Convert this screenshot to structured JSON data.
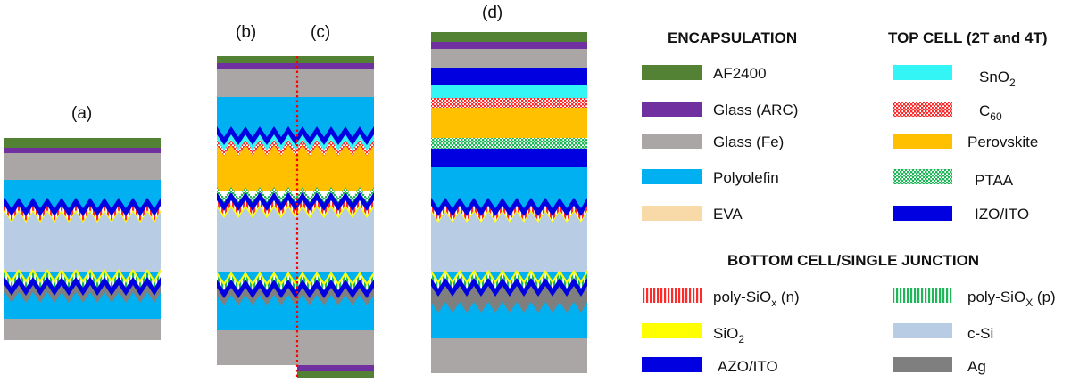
{
  "panels": {
    "a": "(a)",
    "b": "(b)",
    "c": "(c)",
    "d": "(d)"
  },
  "legend": {
    "encapsulation": {
      "title": "ENCAPSULATION",
      "items": [
        {
          "key": "af2400",
          "label": "AF2400",
          "color": "#548235"
        },
        {
          "key": "glass_arc",
          "label": "Glass (ARC)",
          "color": "#7030a0"
        },
        {
          "key": "glass_fe",
          "label": "Glass (Fe)",
          "color": "#aaa6a6"
        },
        {
          "key": "polyolefin",
          "label": "Polyolefin",
          "color": "#00b0f0"
        },
        {
          "key": "eva",
          "label": "EVA",
          "color": "#f8d9a8"
        }
      ]
    },
    "top_cell": {
      "title": "TOP CELL (2T and 4T)",
      "items": [
        {
          "key": "sno2",
          "label_main": "SnO",
          "label_sub": "2",
          "label_after": "",
          "color": "#33f5f5"
        },
        {
          "key": "c60",
          "label_main": "C",
          "label_sub": "60",
          "label_after": "",
          "color": "#ff2a2a",
          "pattern": "dots"
        },
        {
          "key": "perovskite",
          "label": "Perovskite",
          "color": "#ffc000"
        },
        {
          "key": "ptaa",
          "label": "PTAA",
          "color": "#1fb65a",
          "pattern": "dots"
        },
        {
          "key": "izo_ito",
          "label": "IZO/ITO",
          "color": "#0000e0"
        }
      ]
    },
    "bottom_cell": {
      "title": "BOTTOM CELL/SINGLE JUNCTION",
      "items_left": [
        {
          "key": "poly_n",
          "label_main": "poly-SiO",
          "label_sub": "x",
          "label_after": " (n)",
          "color": "#ff2a2a",
          "pattern": "stripes"
        },
        {
          "key": "sio2",
          "label_main": "SiO",
          "label_sub": "2",
          "label_after": "",
          "color": "#ffff00"
        },
        {
          "key": "azo_ito",
          "label": "AZO/ITO",
          "color": "#0000e0"
        }
      ],
      "items_right": [
        {
          "key": "poly_p",
          "label_main": "poly-SiO",
          "label_sub": "X",
          "label_after": " (p)",
          "color": "#1fb65a",
          "pattern": "stripes"
        },
        {
          "key": "csi",
          "label": "c-Si",
          "color": "#b8cce4"
        },
        {
          "key": "ag",
          "label": "Ag",
          "color": "#7f7f7f"
        }
      ]
    }
  },
  "colors": {
    "af2400": "#548235",
    "glass_arc": "#7030a0",
    "glass_fe": "#aaa6a6",
    "polyolefin": "#00b0f0",
    "sno2": "#33f5f5",
    "c60": "#ff2a2a",
    "perovskite": "#ffc000",
    "ptaa": "#1fb65a",
    "izo_ito": "#0000e0",
    "sio2": "#ffff00",
    "csi": "#b8cce4",
    "ag": "#7f7f7f",
    "divider": "#ff0000"
  }
}
